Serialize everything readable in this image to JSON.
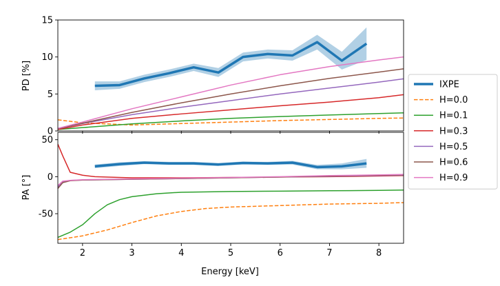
{
  "chart_data": {
    "type": "line",
    "shared_xlabel": "Energy [keV]",
    "xlim": [
      1.5,
      8.5
    ],
    "xticks": [
      "2",
      "3",
      "4",
      "5",
      "6",
      "7",
      "8"
    ],
    "xtick_values": [
      2,
      3,
      4,
      5,
      6,
      7,
      8
    ],
    "legend": {
      "placement": "right",
      "entries": [
        {
          "label": "IXPE",
          "color": "#1f77b4",
          "style": "solid-thick"
        },
        {
          "label": "H=0.0",
          "color": "#ff7f0e",
          "style": "dashed"
        },
        {
          "label": "H=0.1",
          "color": "#2ca02c",
          "style": "solid"
        },
        {
          "label": "H=0.3",
          "color": "#d62728",
          "style": "solid"
        },
        {
          "label": "H=0.5",
          "color": "#9467bd",
          "style": "solid"
        },
        {
          "label": "H=0.6",
          "color": "#8c564b",
          "style": "solid"
        },
        {
          "label": "H=0.9",
          "color": "#e377c2",
          "style": "solid"
        }
      ]
    },
    "panels": [
      {
        "name": "pd",
        "ylabel": "PD [%]",
        "ylim": [
          0,
          15
        ],
        "yticks": [
          "0",
          "5",
          "10",
          "15"
        ],
        "ytick_values": [
          0,
          5,
          10,
          15
        ],
        "ixpe": {
          "x": [
            2.25,
            2.75,
            3.25,
            3.75,
            4.25,
            4.75,
            5.25,
            5.75,
            6.25,
            6.75,
            7.25,
            7.75
          ],
          "y": [
            6.1,
            6.2,
            7.1,
            7.8,
            8.6,
            7.9,
            10.0,
            10.4,
            10.2,
            12.0,
            9.5,
            11.8
          ],
          "err": [
            0.6,
            0.5,
            0.5,
            0.5,
            0.5,
            0.6,
            0.6,
            0.6,
            0.7,
            1.0,
            1.2,
            2.2
          ]
        },
        "models": [
          {
            "name": "H=0.0",
            "x": [
              1.5,
              2,
              3,
              4,
              5,
              6,
              7,
              8,
              8.5
            ],
            "y": [
              1.5,
              1.1,
              0.8,
              1.0,
              1.2,
              1.4,
              1.55,
              1.7,
              1.75
            ]
          },
          {
            "name": "H=0.1",
            "x": [
              1.5,
              2,
              3,
              4,
              5,
              6,
              7,
              8,
              8.5
            ],
            "y": [
              0.2,
              0.45,
              0.95,
              1.35,
              1.7,
              1.95,
              2.15,
              2.35,
              2.45
            ]
          },
          {
            "name": "H=0.3",
            "x": [
              1.5,
              2,
              3,
              4,
              5,
              6,
              7,
              8,
              8.5
            ],
            "y": [
              0.2,
              0.8,
              1.7,
              2.3,
              2.85,
              3.4,
              3.9,
              4.5,
              4.9
            ]
          },
          {
            "name": "H=0.5",
            "x": [
              1.5,
              2,
              3,
              4,
              5,
              6,
              7,
              8,
              8.5
            ],
            "y": [
              0.3,
              1.0,
              2.2,
              3.2,
              4.1,
              5.0,
              5.8,
              6.6,
              7.05
            ]
          },
          {
            "name": "H=0.6",
            "x": [
              1.5,
              2,
              3,
              4,
              5,
              6,
              7,
              8,
              8.5
            ],
            "y": [
              0.3,
              1.05,
              2.5,
              3.8,
              5.0,
              6.1,
              7.1,
              7.95,
              8.4
            ]
          },
          {
            "name": "H=0.9",
            "x": [
              1.5,
              2,
              3,
              4,
              5,
              6,
              7,
              8,
              8.5
            ],
            "y": [
              0.35,
              1.2,
              3.0,
              4.6,
              6.2,
              7.6,
              8.7,
              9.6,
              10.0
            ]
          }
        ]
      },
      {
        "name": "pa",
        "ylabel": "PA [°]",
        "ylim": [
          -90,
          60
        ],
        "yticks": [
          "-50",
          "0",
          "50"
        ],
        "ytick_values": [
          -50,
          0,
          50
        ],
        "ixpe": {
          "x": [
            2.25,
            2.75,
            3.25,
            3.75,
            4.25,
            4.75,
            5.25,
            5.75,
            6.25,
            6.75,
            7.25,
            7.75
          ],
          "y": [
            14.0,
            17.0,
            19.0,
            18.0,
            18.0,
            16.5,
            18.5,
            18.0,
            19.0,
            13.0,
            14.0,
            18.0
          ],
          "err": [
            2.5,
            2.5,
            2.0,
            2.0,
            2.0,
            2.0,
            2.0,
            2.0,
            2.5,
            3.0,
            4.0,
            6.0
          ]
        },
        "models": [
          {
            "name": "H=0.0",
            "x": [
              1.5,
              2,
              2.5,
              3,
              3.5,
              4,
              4.5,
              5,
              6,
              7,
              8,
              8.5
            ],
            "y": [
              -85,
              -80,
              -72,
              -62,
              -53,
              -47,
              -43,
              -41,
              -39,
              -37,
              -36,
              -35
            ]
          },
          {
            "name": "H=0.1",
            "x": [
              1.5,
              1.75,
              2,
              2.25,
              2.5,
              2.75,
              3,
              3.5,
              4,
              5,
              6,
              7,
              8,
              8.5
            ],
            "y": [
              -82,
              -75,
              -65,
              -50,
              -38,
              -31,
              -27,
              -23,
              -21,
              -20,
              -19.5,
              -19,
              -18.5,
              -18
            ]
          },
          {
            "name": "H=0.3",
            "x": [
              1.5,
              1.6,
              1.75,
              2,
              2.25,
              2.75,
              3,
              4,
              5,
              6,
              7,
              8,
              8.5
            ],
            "y": [
              44,
              28,
              6,
              2,
              0,
              -1,
              -1.5,
              -1.5,
              -1,
              -0.5,
              0,
              1,
              1.5
            ]
          },
          {
            "name": "H=0.5",
            "x": [
              1.5,
              1.6,
              1.75,
              2,
              3,
              4,
              5,
              6,
              7,
              8,
              8.5
            ],
            "y": [
              -14,
              -7,
              -5,
              -4.5,
              -3.5,
              -2.5,
              -1.5,
              -0.5,
              0.5,
              1.5,
              2
            ]
          },
          {
            "name": "H=0.6",
            "x": [
              1.5,
              1.6,
              1.75,
              2,
              3,
              4,
              5,
              6,
              7,
              8,
              8.5
            ],
            "y": [
              -16,
              -8,
              -5.5,
              -4.5,
              -3.5,
              -2.5,
              -1.5,
              -0.5,
              1,
              2,
              2.5
            ]
          },
          {
            "name": "H=0.9",
            "x": [
              1.5,
              1.6,
              1.75,
              2,
              3,
              4,
              5,
              6,
              7,
              8,
              8.5
            ],
            "y": [
              -12,
              -6,
              -5,
              -4,
              -3,
              -2,
              -1,
              0,
              1.5,
              2.5,
              3
            ]
          }
        ]
      }
    ]
  }
}
